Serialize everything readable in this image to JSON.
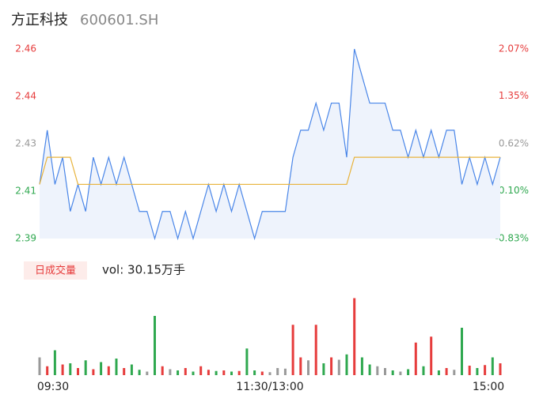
{
  "chart_data": [
    {
      "type": "line",
      "title": "方正科技",
      "subtitle": "600601.SH",
      "xlim": [
        0,
        60
      ],
      "ylim": [
        2.39,
        2.46
      ],
      "yticks": [
        2.46,
        {
          "value": 2.4425,
          "label": "2.44"
        },
        {
          "value": 2.425,
          "label": "2.43"
        },
        {
          "value": 2.4075,
          "label": "2.41"
        },
        2.39
      ],
      "y2lim": [
        -0.83,
        2.07
      ],
      "y2ticks": [
        {
          "value": 2.07,
          "label": "2.07%"
        },
        {
          "value": 1.35,
          "label": "1.35%"
        },
        {
          "value": 0.62,
          "label": "0.62%"
        },
        {
          "value": -0.1,
          "label": "-0.10%"
        },
        {
          "value": -0.83,
          "label": "-0.83%"
        }
      ],
      "series": [
        {
          "name": "price",
          "color": "#4a86e8",
          "values": [
            2.41,
            2.43,
            2.41,
            2.42,
            2.4,
            2.41,
            2.4,
            2.42,
            2.41,
            2.42,
            2.41,
            2.42,
            2.41,
            2.4,
            2.4,
            2.39,
            2.4,
            2.4,
            2.39,
            2.4,
            2.39,
            2.4,
            2.41,
            2.4,
            2.41,
            2.4,
            2.41,
            2.4,
            2.39,
            2.4,
            2.4,
            2.4,
            2.4,
            2.42,
            2.43,
            2.43,
            2.44,
            2.43,
            2.44,
            2.44,
            2.42,
            2.46,
            2.45,
            2.44,
            2.44,
            2.44,
            2.43,
            2.43,
            2.42,
            2.43,
            2.42,
            2.43,
            2.42,
            2.43,
            2.43,
            2.41,
            2.42,
            2.41,
            2.42,
            2.41,
            2.42
          ]
        },
        {
          "name": "average",
          "color": "#e8b33b",
          "values": [
            2.41,
            2.42,
            2.42,
            2.42,
            2.42,
            2.41,
            2.41,
            2.41,
            2.41,
            2.41,
            2.41,
            2.41,
            2.41,
            2.41,
            2.41,
            2.41,
            2.41,
            2.41,
            2.41,
            2.41,
            2.41,
            2.41,
            2.41,
            2.41,
            2.41,
            2.41,
            2.41,
            2.41,
            2.41,
            2.41,
            2.41,
            2.41,
            2.41,
            2.41,
            2.41,
            2.41,
            2.41,
            2.41,
            2.41,
            2.41,
            2.41,
            2.42,
            2.42,
            2.42,
            2.42,
            2.42,
            2.42,
            2.42,
            2.42,
            2.42,
            2.42,
            2.42,
            2.42,
            2.42,
            2.42,
            2.42,
            2.42,
            2.42,
            2.42,
            2.42,
            2.42
          ]
        }
      ]
    },
    {
      "type": "bar",
      "legend": "日成交量",
      "annotation": "vol: 30.15万手",
      "xlim": [
        0,
        60
      ],
      "xticks": [
        {
          "value": 0,
          "label": "09:30"
        },
        {
          "value": 30,
          "label": "11:30/13:00"
        },
        {
          "value": 60,
          "label": "15:00"
        }
      ],
      "ylim": [
        0,
        1400
      ],
      "values": [
        300,
        150,
        420,
        180,
        200,
        120,
        250,
        100,
        220,
        150,
        280,
        120,
        180,
        90,
        60,
        1000,
        150,
        100,
        80,
        120,
        60,
        150,
        90,
        70,
        80,
        60,
        70,
        450,
        80,
        60,
        50,
        120,
        110,
        850,
        300,
        250,
        850,
        200,
        300,
        260,
        350,
        1300,
        300,
        180,
        150,
        120,
        80,
        60,
        100,
        550,
        150,
        650,
        80,
        120,
        90,
        800,
        160,
        120,
        170,
        300,
        200
      ]
    }
  ]
}
